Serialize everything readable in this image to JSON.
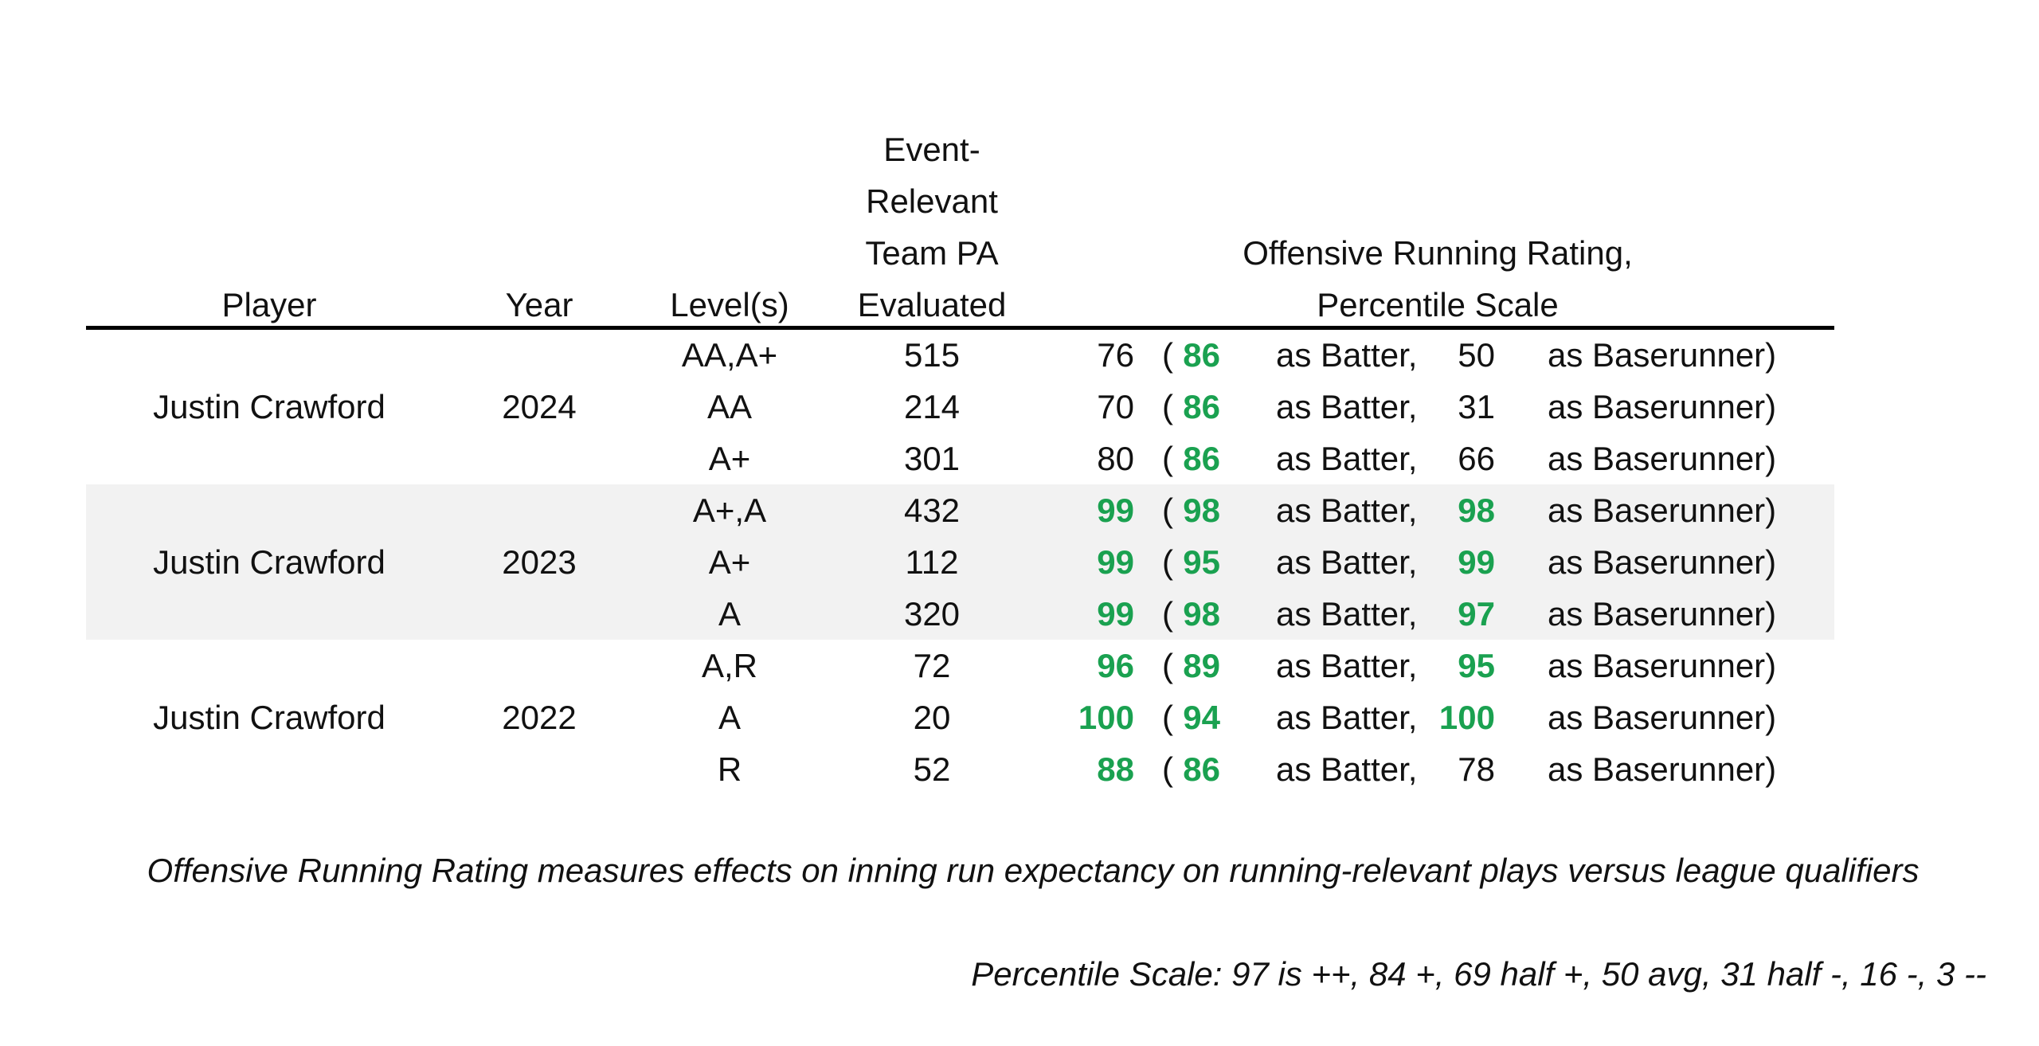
{
  "headers": {
    "player": "Player",
    "year": "Year",
    "levels": "Level(s)",
    "pa_line1": "Event-",
    "pa_line2": "Relevant",
    "pa_line3": "Team PA",
    "pa_line4": "Evaluated",
    "rating_line1": "Offensive Running Rating,",
    "rating_line2": "Percentile Scale"
  },
  "labels": {
    "open_paren": "(",
    "as_batter": "as Batter,",
    "as_baserunner": "as Baserunner)"
  },
  "colors": {
    "highlight": "#1aa150",
    "band": "#f2f2f2"
  },
  "groups": [
    {
      "player": "Justin Crawford",
      "year": "2024",
      "shaded": false,
      "rows": [
        {
          "level": "AA,A+",
          "pa": "515",
          "overall": "76",
          "overall_hi": false,
          "batter": "86",
          "batter_hi": true,
          "runner": "50",
          "runner_hi": false
        },
        {
          "level": "AA",
          "pa": "214",
          "overall": "70",
          "overall_hi": false,
          "batter": "86",
          "batter_hi": true,
          "runner": "31",
          "runner_hi": false
        },
        {
          "level": "A+",
          "pa": "301",
          "overall": "80",
          "overall_hi": false,
          "batter": "86",
          "batter_hi": true,
          "runner": "66",
          "runner_hi": false
        }
      ]
    },
    {
      "player": "Justin Crawford",
      "year": "2023",
      "shaded": true,
      "rows": [
        {
          "level": "A+,A",
          "pa": "432",
          "overall": "99",
          "overall_hi": true,
          "batter": "98",
          "batter_hi": true,
          "runner": "98",
          "runner_hi": true
        },
        {
          "level": "A+",
          "pa": "112",
          "overall": "99",
          "overall_hi": true,
          "batter": "95",
          "batter_hi": true,
          "runner": "99",
          "runner_hi": true
        },
        {
          "level": "A",
          "pa": "320",
          "overall": "99",
          "overall_hi": true,
          "batter": "98",
          "batter_hi": true,
          "runner": "97",
          "runner_hi": true
        }
      ]
    },
    {
      "player": "Justin Crawford",
      "year": "2022",
      "shaded": false,
      "rows": [
        {
          "level": "A,R",
          "pa": "72",
          "overall": "96",
          "overall_hi": true,
          "batter": "89",
          "batter_hi": true,
          "runner": "95",
          "runner_hi": true
        },
        {
          "level": "A",
          "pa": "20",
          "overall": "100",
          "overall_hi": true,
          "batter": "94",
          "batter_hi": true,
          "runner": "100",
          "runner_hi": true
        },
        {
          "level": "R",
          "pa": "52",
          "overall": "88",
          "overall_hi": true,
          "batter": "86",
          "batter_hi": true,
          "runner": "78",
          "runner_hi": false
        }
      ]
    }
  ],
  "footnotes": {
    "definition": "Offensive Running Rating measures effects on inning run expectancy on running-relevant plays versus league qualifiers",
    "scale": "Percentile Scale: 97 is ++, 84 +, 69 half +, 50 avg, 31 half -, 16 -, 3 --"
  }
}
